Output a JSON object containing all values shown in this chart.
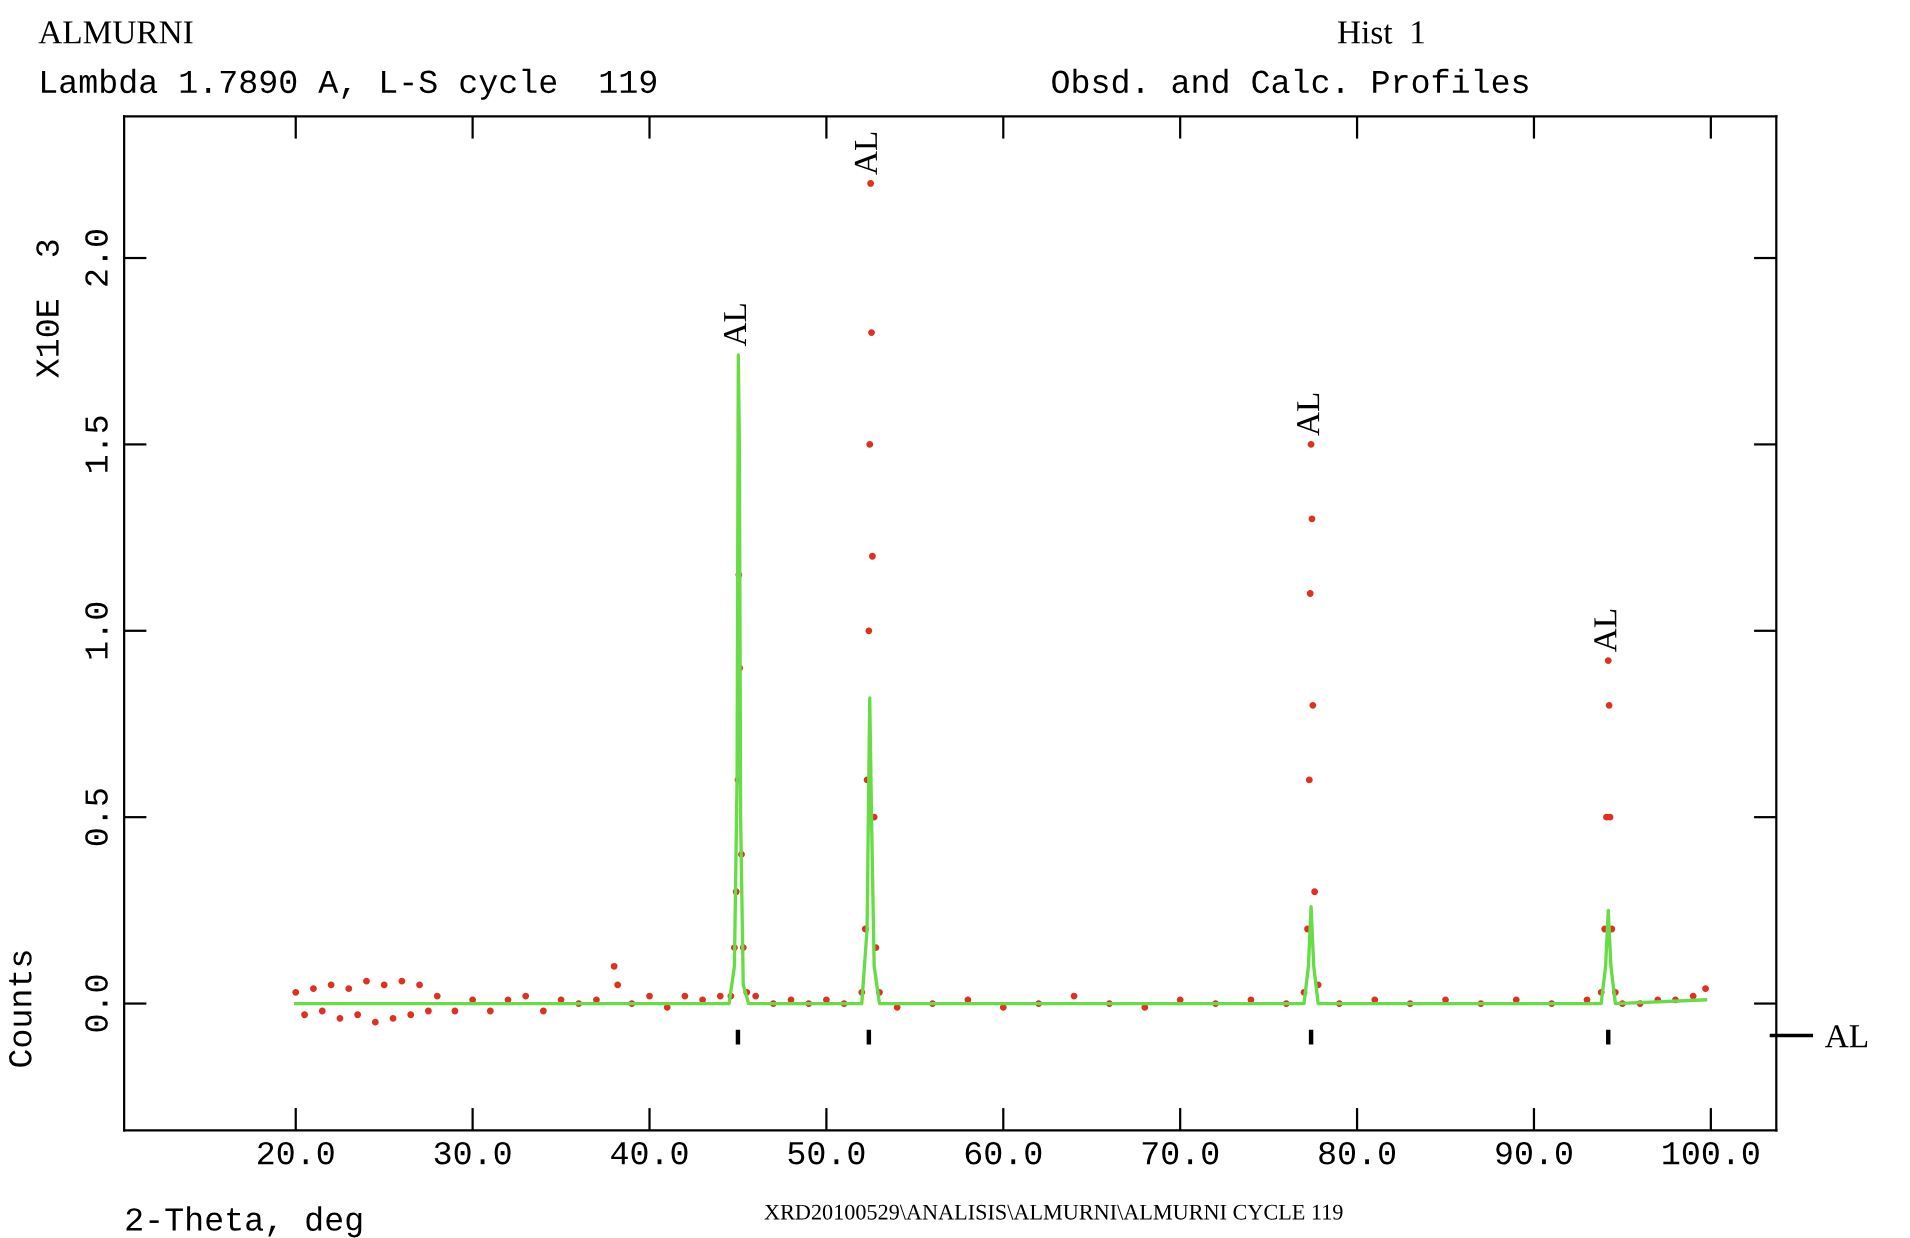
{
  "chart_data": {
    "type": "scatter",
    "title": "ALMURNI",
    "subtitle": "Lambda 1.7890 A, L-S cycle  119",
    "xlabel": "2-Theta, deg",
    "ylabel": "Counts",
    "annotations": [
      "Hist  1",
      "Obsd. and Calc. Profiles",
      "X10E  3",
      "XRD20100529\\ANALISIS\\ALMURNI\\ALMURNI CYCLE 119",
      {
        "text": "AL",
        "x": 45.0,
        "y": 1.74
      },
      {
        "text": "AL",
        "x": 52.4,
        "y": 2.2
      },
      {
        "text": "AL",
        "x": 77.4,
        "y": 1.5
      },
      {
        "text": "AL",
        "x": 94.2,
        "y": 0.92
      }
    ],
    "series": [
      {
        "color": "#e03020",
        "marker": "circle",
        "x": [
          20.0,
          20.5,
          21,
          21.5,
          22,
          22.5,
          23,
          23.5,
          24,
          24.5,
          25,
          25.5,
          26,
          26.5,
          27,
          27.5,
          28,
          29,
          30,
          31,
          32,
          33,
          34,
          35,
          36,
          37,
          38.0,
          38.2,
          39,
          40,
          41,
          42,
          43,
          44,
          44.6,
          44.8,
          44.9,
          45.0,
          45.05,
          45.1,
          45.2,
          45.3,
          45.5,
          46,
          47,
          48,
          49,
          50,
          51,
          52.0,
          52.2,
          52.3,
          52.4,
          52.45,
          52.5,
          52.55,
          52.6,
          52.7,
          52.8,
          53.0,
          54,
          56,
          58,
          60,
          62,
          64,
          66,
          68,
          70,
          72,
          74,
          76,
          77.0,
          77.2,
          77.3,
          77.35,
          77.4,
          77.45,
          77.5,
          77.6,
          77.8,
          79,
          81,
          83,
          85,
          87,
          89,
          91,
          93,
          93.8,
          94.0,
          94.1,
          94.2,
          94.25,
          94.3,
          94.4,
          94.6,
          95,
          96,
          97,
          98,
          99,
          99.7
        ],
        "values": [
          0.03,
          -0.03,
          0.04,
          -0.02,
          0.05,
          -0.04,
          0.04,
          -0.03,
          0.06,
          -0.05,
          0.05,
          -0.04,
          0.06,
          -0.03,
          0.05,
          -0.02,
          0.02,
          -0.02,
          0.01,
          -0.02,
          0.01,
          0.02,
          -0.02,
          0.01,
          0.0,
          0.01,
          0.1,
          0.05,
          0.0,
          0.02,
          -0.01,
          0.02,
          0.01,
          0.02,
          0.02,
          0.15,
          0.3,
          0.6,
          1.15,
          0.9,
          0.4,
          0.15,
          0.03,
          0.02,
          0.0,
          0.01,
          0.0,
          0.01,
          0.0,
          0.03,
          0.2,
          0.6,
          1.0,
          1.5,
          2.2,
          1.8,
          1.2,
          0.5,
          0.15,
          0.03,
          -0.01,
          0.0,
          0.01,
          -0.01,
          0.0,
          0.02,
          0.0,
          -0.01,
          0.01,
          0.0,
          0.01,
          0.0,
          0.03,
          0.2,
          0.6,
          1.1,
          1.5,
          1.3,
          0.8,
          0.3,
          0.05,
          0.0,
          0.01,
          0.0,
          0.01,
          0.0,
          0.01,
          0.0,
          0.01,
          0.03,
          0.2,
          0.5,
          0.92,
          0.8,
          0.5,
          0.2,
          0.03,
          0.0,
          0.0,
          0.01,
          0.01,
          0.02,
          0.04
        ]
      },
      {
        "type": "line",
        "color": "#66dd44",
        "marker": "none",
        "x": [
          20,
          44.5,
          44.8,
          44.95,
          45.02,
          45.08,
          45.15,
          45.3,
          45.6,
          52.0,
          52.3,
          52.45,
          52.55,
          52.7,
          53.0,
          77.0,
          77.25,
          77.4,
          77.55,
          77.8,
          93.8,
          94.05,
          94.2,
          94.35,
          94.6,
          99.7
        ],
        "values": [
          0.0,
          0.0,
          0.1,
          0.6,
          1.74,
          1.5,
          0.5,
          0.05,
          0.0,
          0.0,
          0.2,
          0.82,
          0.5,
          0.1,
          0.0,
          0.0,
          0.1,
          0.26,
          0.1,
          0.0,
          0.0,
          0.1,
          0.25,
          0.1,
          0.0,
          0.01
        ]
      },
      {
        "type": "bar",
        "name": "AL",
        "color": "#000000",
        "x": [
          45.0,
          52.4,
          77.4,
          94.2
        ],
        "base": [
          -0.11,
          -0.11,
          -0.11,
          -0.11
        ],
        "values": [
          0.04,
          0.04,
          0.04,
          0.04
        ]
      }
    ],
    "xlim": [
      10.3,
      103.7
    ],
    "ylim": [
      -0.34,
      2.38
    ],
    "xticks": [
      {
        "value": 20,
        "label": "20.0"
      },
      {
        "value": 30,
        "label": "30.0"
      },
      {
        "value": 40,
        "label": "40.0"
      },
      {
        "value": 50,
        "label": "50.0"
      },
      {
        "value": 60,
        "label": "60.0"
      },
      {
        "value": 70,
        "label": "70.0"
      },
      {
        "value": 80,
        "label": "80.0"
      },
      {
        "value": 90,
        "label": "90.0"
      },
      {
        "value": 100,
        "label": "100.0"
      }
    ],
    "yticks": [
      {
        "value": 0,
        "label": "0.0"
      },
      {
        "value": 0.5,
        "label": "0.5"
      },
      {
        "value": 1,
        "label": "1.0"
      },
      {
        "value": 1.5,
        "label": "1.5"
      },
      {
        "value": 2,
        "label": "2.0"
      }
    ],
    "legend": "right",
    "grid": false
  }
}
